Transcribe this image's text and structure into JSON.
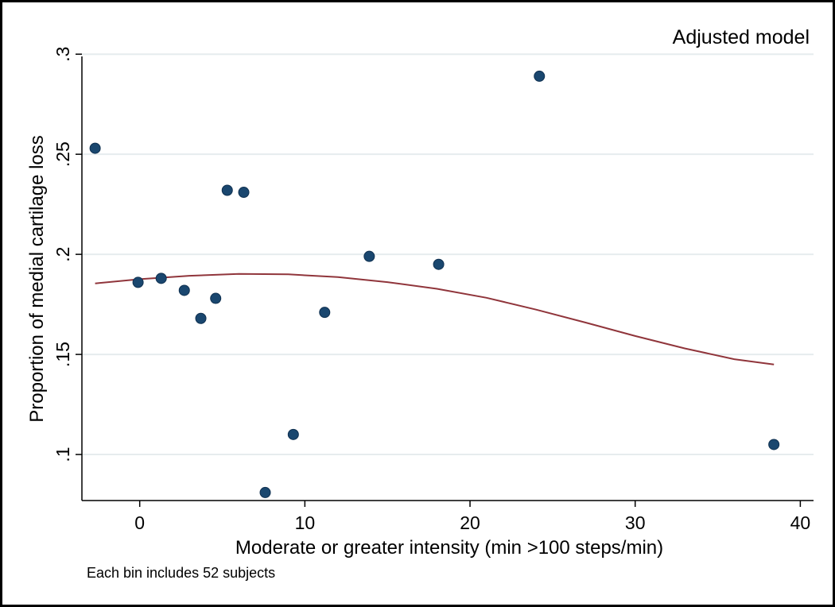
{
  "chart_data": {
    "type": "scatter",
    "subtitle": "Adjusted model",
    "xlabel": "Moderate or greater intensity (min >100 steps/min)",
    "ylabel": "Proportion of medial cartilage loss",
    "note": "Each bin includes 52 subjects",
    "xlim": [
      -3.5,
      40.8
    ],
    "ylim": [
      0.077,
      0.31
    ],
    "x_ticks": [
      0,
      10,
      20,
      30,
      40
    ],
    "x_tick_labels": [
      "0",
      "10",
      "20",
      "30",
      "40"
    ],
    "y_ticks": [
      0.1,
      0.15,
      0.2,
      0.25,
      0.3
    ],
    "y_tick_labels": [
      ".1",
      ".15",
      ".2",
      ".25",
      ".3"
    ],
    "grid": "horizontal",
    "series": [
      {
        "name": "binned means",
        "marker": "circle",
        "color": "#1a476f",
        "points": [
          {
            "x": -2.7,
            "y": 0.253
          },
          {
            "x": -0.1,
            "y": 0.186
          },
          {
            "x": 1.3,
            "y": 0.188
          },
          {
            "x": 2.7,
            "y": 0.182
          },
          {
            "x": 3.7,
            "y": 0.168
          },
          {
            "x": 4.6,
            "y": 0.178
          },
          {
            "x": 5.3,
            "y": 0.232
          },
          {
            "x": 6.3,
            "y": 0.231
          },
          {
            "x": 7.6,
            "y": 0.081
          },
          {
            "x": 9.3,
            "y": 0.11
          },
          {
            "x": 11.2,
            "y": 0.171
          },
          {
            "x": 13.9,
            "y": 0.199
          },
          {
            "x": 18.1,
            "y": 0.195
          },
          {
            "x": 24.2,
            "y": 0.289
          },
          {
            "x": 38.4,
            "y": 0.105
          }
        ]
      },
      {
        "name": "quadratic fit",
        "line": true,
        "color": "#90353b",
        "points": [
          {
            "x": -2.7,
            "y": 0.1855
          },
          {
            "x": 0,
            "y": 0.1876
          },
          {
            "x": 3,
            "y": 0.1893
          },
          {
            "x": 6,
            "y": 0.1902
          },
          {
            "x": 9,
            "y": 0.19
          },
          {
            "x": 12,
            "y": 0.1886
          },
          {
            "x": 15,
            "y": 0.1861
          },
          {
            "x": 18,
            "y": 0.1828
          },
          {
            "x": 21,
            "y": 0.1783
          },
          {
            "x": 24,
            "y": 0.1724
          },
          {
            "x": 27,
            "y": 0.1659
          },
          {
            "x": 30,
            "y": 0.1592
          },
          {
            "x": 33,
            "y": 0.153
          },
          {
            "x": 36,
            "y": 0.1476
          },
          {
            "x": 38.4,
            "y": 0.145
          }
        ]
      }
    ]
  }
}
